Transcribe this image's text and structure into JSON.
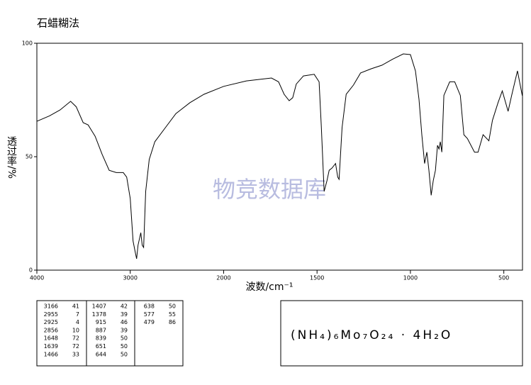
{
  "chart_data": {
    "type": "line",
    "title": "石蜡糊法",
    "x_label": "波数/cm⁻¹",
    "y_label": "透过率/%",
    "watermark": "物竞数据库",
    "xlim": [
      4000,
      400
    ],
    "x_scale_break": {
      "at": 2000,
      "factor": 2
    },
    "xticks": [
      4000,
      3000,
      2000,
      1500,
      1000,
      500
    ],
    "ylim": [
      0,
      100
    ],
    "yticks": [
      0,
      50,
      100
    ],
    "series": [
      {
        "color": "#000000",
        "x": [
          4000,
          3865,
          3752,
          3639,
          3579,
          3504,
          3451,
          3376,
          3301,
          3226,
          3150,
          3075,
          3038,
          3000,
          2970,
          2947,
          2932,
          2917,
          2887,
          2872,
          2857,
          2835,
          2797,
          2737,
          2624,
          2511,
          2361,
          2211,
          2000,
          1878,
          1744,
          1706,
          1676,
          1649,
          1630,
          1611,
          1573,
          1515,
          1489,
          1477,
          1462,
          1447,
          1435,
          1420,
          1401,
          1389,
          1382,
          1366,
          1344,
          1305,
          1267,
          1210,
          1153,
          1095,
          1038,
          1000,
          973,
          954,
          939,
          924,
          912,
          901,
          889,
          878,
          866,
          855,
          847,
          840,
          832,
          821,
          790,
          763,
          733,
          714,
          695,
          657,
          638,
          611,
          580,
          561,
          531,
          508,
          477,
          458,
          427,
          401
        ],
        "values": [
          65.6,
          68,
          70.6,
          74.4,
          72,
          65,
          64,
          59,
          51,
          44,
          43,
          43,
          41,
          31.6,
          12.8,
          8,
          5,
          11,
          16.5,
          11,
          10,
          34.7,
          48.8,
          56.6,
          62.8,
          69,
          73.8,
          77.5,
          81,
          83.4,
          84.7,
          83,
          77.5,
          74.7,
          76,
          82,
          85.6,
          86.3,
          83,
          62.8,
          34.7,
          39.4,
          44,
          45,
          47,
          41,
          40,
          62.8,
          77.5,
          81.6,
          86.9,
          88.75,
          90.3,
          93,
          95.3,
          95,
          87.8,
          75.3,
          59.7,
          47,
          52,
          44,
          33,
          39.4,
          44,
          55,
          53.4,
          56.6,
          52,
          77,
          83,
          83,
          77,
          59.7,
          58,
          52,
          52,
          59.7,
          57,
          66,
          73.8,
          79,
          70,
          77,
          87.8,
          76.9
        ]
      }
    ],
    "peaks": [
      [
        3166,
        41
      ],
      [
        2955,
        7
      ],
      [
        2925,
        4
      ],
      [
        2856,
        10
      ],
      [
        1648,
        72
      ],
      [
        1639,
        72
      ],
      [
        1466,
        33
      ],
      [
        1407,
        42
      ],
      [
        1378,
        39
      ],
      [
        915,
        46
      ],
      [
        887,
        39
      ],
      [
        839,
        50
      ],
      [
        651,
        50
      ],
      [
        644,
        50
      ],
      [
        638,
        50
      ],
      [
        577,
        55
      ],
      [
        479,
        86
      ]
    ],
    "formula": "(NH₄)₆Mo₇O₂₄ · 4H₂O"
  }
}
